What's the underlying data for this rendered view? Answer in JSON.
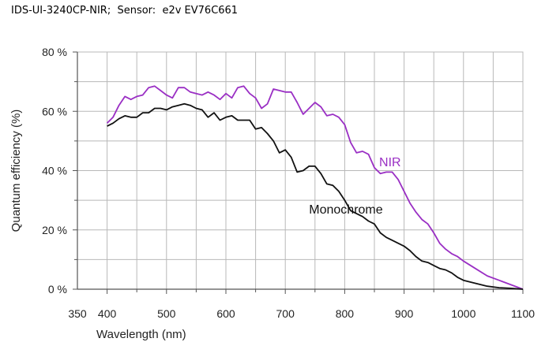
{
  "header": {
    "title": "IDS-UI-3240CP-NIR;  Sensor:  e2v EV76C661"
  },
  "colors": {
    "nir": "#9a2fc4",
    "mono": "#111111",
    "grid": "#b8b8b8",
    "axis": "#555555"
  },
  "chart_data": {
    "type": "line",
    "title": "IDS-UI-3240CP-NIR;  Sensor:  e2v EV76C661",
    "xlabel": "Wavelength (nm)",
    "ylabel": "Quantum efficiency (%)",
    "xlim": [
      350,
      1100
    ],
    "ylim": [
      0,
      80
    ],
    "x_ticks": [
      350,
      400,
      500,
      600,
      700,
      800,
      900,
      1000,
      1100
    ],
    "x_tick_labels": [
      "350",
      "400",
      "500",
      "600",
      "700",
      "800",
      "900",
      "1000",
      "1100"
    ],
    "y_ticks": [
      0,
      20,
      40,
      60,
      80
    ],
    "y_tick_labels": [
      "0 %",
      "20 %",
      "40 %",
      "60 %",
      "80 %"
    ],
    "grid": true,
    "legend": "none",
    "series": [
      {
        "name": "NIR",
        "color": "#9a2fc4",
        "points": [
          [
            400,
            56
          ],
          [
            410,
            58
          ],
          [
            420,
            62
          ],
          [
            430,
            65
          ],
          [
            440,
            64
          ],
          [
            450,
            65
          ],
          [
            460,
            65.5
          ],
          [
            470,
            68
          ],
          [
            480,
            68.5
          ],
          [
            490,
            67
          ],
          [
            500,
            65.5
          ],
          [
            510,
            64.5
          ],
          [
            520,
            68
          ],
          [
            530,
            68
          ],
          [
            540,
            66.5
          ],
          [
            550,
            66
          ],
          [
            560,
            65.5
          ],
          [
            570,
            66.5
          ],
          [
            580,
            65.5
          ],
          [
            590,
            64
          ],
          [
            600,
            66
          ],
          [
            610,
            64.5
          ],
          [
            620,
            68
          ],
          [
            630,
            68.5
          ],
          [
            640,
            66
          ],
          [
            650,
            64.5
          ],
          [
            660,
            61
          ],
          [
            670,
            62.5
          ],
          [
            680,
            67.5
          ],
          [
            690,
            67
          ],
          [
            700,
            66.5
          ],
          [
            710,
            66.5
          ],
          [
            720,
            63
          ],
          [
            730,
            59
          ],
          [
            740,
            61
          ],
          [
            750,
            63
          ],
          [
            760,
            61.5
          ],
          [
            770,
            58.5
          ],
          [
            780,
            59
          ],
          [
            790,
            58
          ],
          [
            800,
            55.5
          ],
          [
            810,
            49.5
          ],
          [
            820,
            46
          ],
          [
            830,
            46.5
          ],
          [
            840,
            45.5
          ],
          [
            850,
            41
          ],
          [
            860,
            39
          ],
          [
            870,
            39.5
          ],
          [
            880,
            39.5
          ],
          [
            890,
            37
          ],
          [
            900,
            33
          ],
          [
            910,
            29
          ],
          [
            920,
            26
          ],
          [
            930,
            23.5
          ],
          [
            940,
            22
          ],
          [
            950,
            19
          ],
          [
            960,
            15.5
          ],
          [
            970,
            13.5
          ],
          [
            980,
            12
          ],
          [
            990,
            11
          ],
          [
            1000,
            9.5
          ],
          [
            1020,
            7
          ],
          [
            1040,
            4.5
          ],
          [
            1060,
            3
          ],
          [
            1080,
            1.5
          ],
          [
            1100,
            0
          ]
        ]
      },
      {
        "name": "Monochrome",
        "color": "#111111",
        "points": [
          [
            400,
            55
          ],
          [
            410,
            56
          ],
          [
            420,
            57.5
          ],
          [
            430,
            58.5
          ],
          [
            440,
            58
          ],
          [
            450,
            58
          ],
          [
            460,
            59.5
          ],
          [
            470,
            59.5
          ],
          [
            480,
            61
          ],
          [
            490,
            61
          ],
          [
            500,
            60.5
          ],
          [
            510,
            61.5
          ],
          [
            520,
            62
          ],
          [
            530,
            62.5
          ],
          [
            540,
            62
          ],
          [
            550,
            61
          ],
          [
            560,
            60.5
          ],
          [
            570,
            58
          ],
          [
            580,
            59.5
          ],
          [
            590,
            57
          ],
          [
            600,
            58
          ],
          [
            610,
            58.5
          ],
          [
            620,
            57
          ],
          [
            630,
            57
          ],
          [
            640,
            57
          ],
          [
            650,
            54
          ],
          [
            660,
            54.5
          ],
          [
            670,
            52.5
          ],
          [
            680,
            50
          ],
          [
            690,
            46
          ],
          [
            700,
            47
          ],
          [
            710,
            44.5
          ],
          [
            720,
            39.5
          ],
          [
            730,
            40
          ],
          [
            740,
            41.5
          ],
          [
            750,
            41.5
          ],
          [
            760,
            39
          ],
          [
            770,
            35.5
          ],
          [
            780,
            35
          ],
          [
            790,
            33
          ],
          [
            800,
            30
          ],
          [
            810,
            26.5
          ],
          [
            820,
            25.5
          ],
          [
            830,
            24.5
          ],
          [
            840,
            23
          ],
          [
            850,
            22
          ],
          [
            860,
            19
          ],
          [
            870,
            17.5
          ],
          [
            880,
            16.5
          ],
          [
            890,
            15.5
          ],
          [
            900,
            14.5
          ],
          [
            910,
            13
          ],
          [
            920,
            11
          ],
          [
            930,
            9.5
          ],
          [
            940,
            9
          ],
          [
            950,
            8
          ],
          [
            960,
            7
          ],
          [
            970,
            6.5
          ],
          [
            980,
            5.5
          ],
          [
            990,
            4
          ],
          [
            1000,
            3
          ],
          [
            1020,
            2
          ],
          [
            1040,
            1
          ],
          [
            1060,
            0.5
          ],
          [
            1080,
            0.3
          ],
          [
            1100,
            0
          ]
        ]
      }
    ],
    "annotations": [
      {
        "text": "NIR",
        "x": 858,
        "y": 41.5,
        "color": "#9a2fc4"
      },
      {
        "text": "Monochrome",
        "x": 740,
        "y": 25.5,
        "color": "#111111"
      }
    ]
  }
}
